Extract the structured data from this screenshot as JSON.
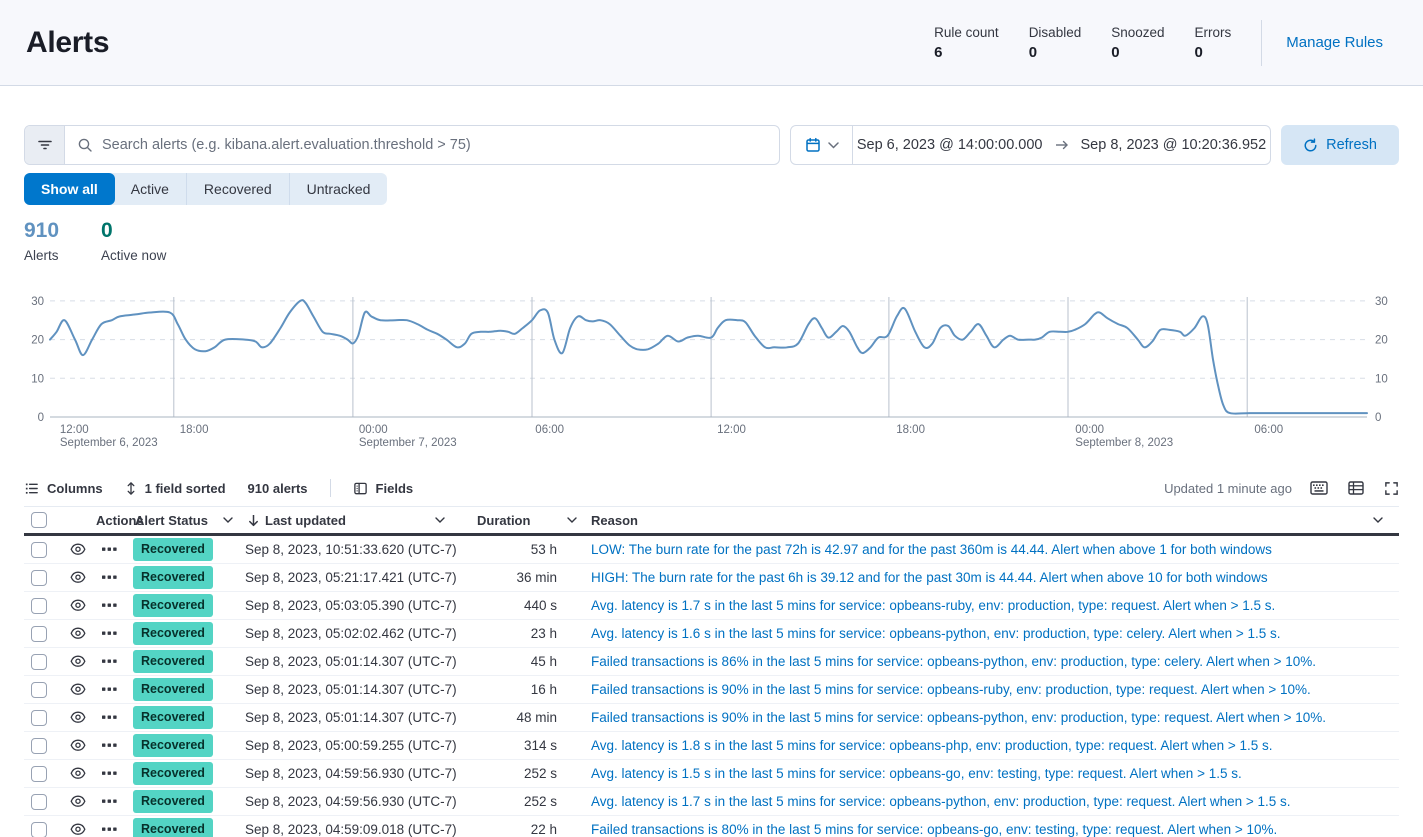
{
  "header": {
    "title": "Alerts",
    "stats": [
      {
        "label": "Rule count",
        "value": "6"
      },
      {
        "label": "Disabled",
        "value": "0"
      },
      {
        "label": "Snoozed",
        "value": "0"
      },
      {
        "label": "Errors",
        "value": "0"
      }
    ],
    "manage_rules_label": "Manage Rules"
  },
  "search": {
    "placeholder": "Search alerts (e.g. kibana.alert.evaluation.threshold > 75)"
  },
  "datepicker": {
    "start": "Sep 6, 2023 @ 14:00:00.000",
    "end": "Sep 8, 2023 @ 10:20:36.952",
    "refresh_label": "Refresh"
  },
  "filters": {
    "tabs": [
      {
        "label": "Show all",
        "active": true
      },
      {
        "label": "Active",
        "active": false
      },
      {
        "label": "Recovered",
        "active": false
      },
      {
        "label": "Untracked",
        "active": false
      }
    ]
  },
  "summary": {
    "alerts_count": "910",
    "alerts_label": "Alerts",
    "active_count": "0",
    "active_label": "Active now"
  },
  "chart_data": {
    "type": "line",
    "ylabel": "",
    "xlabel": "",
    "ylim": [
      0,
      31
    ],
    "y_ticks": [
      0,
      10,
      20,
      30
    ],
    "y_axis_sides": [
      "left",
      "right"
    ],
    "grid": true,
    "line_color": "#6092c0",
    "x_ticks": [
      {
        "pos": 0.006,
        "time": "12:00",
        "date": "September 6, 2023"
      },
      {
        "pos": 0.097,
        "time": "18:00",
        "date": ""
      },
      {
        "pos": 0.233,
        "time": "00:00",
        "date": "September 7, 2023"
      },
      {
        "pos": 0.367,
        "time": "06:00",
        "date": ""
      },
      {
        "pos": 0.505,
        "time": "12:00",
        "date": ""
      },
      {
        "pos": 0.641,
        "time": "18:00",
        "date": ""
      },
      {
        "pos": 0.777,
        "time": "00:00",
        "date": "September 8, 2023"
      },
      {
        "pos": 0.913,
        "time": "06:00",
        "date": ""
      }
    ],
    "vertical_gridline_pos": [
      0.094,
      0.23,
      0.366,
      0.502,
      0.637,
      0.773,
      0.909
    ],
    "points": [
      [
        0.0,
        20
      ],
      [
        0.005,
        22
      ],
      [
        0.011,
        25
      ],
      [
        0.019,
        20
      ],
      [
        0.025,
        16
      ],
      [
        0.032,
        20
      ],
      [
        0.039,
        24
      ],
      [
        0.047,
        25
      ],
      [
        0.053,
        26
      ],
      [
        0.065,
        26.5
      ],
      [
        0.076,
        27
      ],
      [
        0.091,
        27
      ],
      [
        0.097,
        24
      ],
      [
        0.103,
        20
      ],
      [
        0.11,
        17.5
      ],
      [
        0.118,
        17
      ],
      [
        0.125,
        18
      ],
      [
        0.133,
        20
      ],
      [
        0.148,
        20
      ],
      [
        0.156,
        19.5
      ],
      [
        0.161,
        18
      ],
      [
        0.167,
        19
      ],
      [
        0.175,
        23
      ],
      [
        0.182,
        27
      ],
      [
        0.19,
        30
      ],
      [
        0.194,
        29.5
      ],
      [
        0.2,
        26
      ],
      [
        0.207,
        22
      ],
      [
        0.213,
        21.5
      ],
      [
        0.22,
        21
      ],
      [
        0.226,
        20
      ],
      [
        0.23,
        19
      ],
      [
        0.234,
        21
      ],
      [
        0.239,
        27
      ],
      [
        0.244,
        26
      ],
      [
        0.251,
        25
      ],
      [
        0.262,
        25
      ],
      [
        0.271,
        25
      ],
      [
        0.279,
        24
      ],
      [
        0.287,
        22.5
      ],
      [
        0.294,
        21.5
      ],
      [
        0.301,
        20
      ],
      [
        0.309,
        18
      ],
      [
        0.315,
        19
      ],
      [
        0.32,
        21.5
      ],
      [
        0.327,
        22
      ],
      [
        0.334,
        22
      ],
      [
        0.342,
        22.3
      ],
      [
        0.348,
        22
      ],
      [
        0.353,
        21.5
      ],
      [
        0.359,
        23
      ],
      [
        0.366,
        25
      ],
      [
        0.372,
        27.5
      ],
      [
        0.378,
        27
      ],
      [
        0.383,
        20
      ],
      [
        0.389,
        16.5
      ],
      [
        0.395,
        23
      ],
      [
        0.401,
        26
      ],
      [
        0.407,
        25
      ],
      [
        0.412,
        24.7
      ],
      [
        0.418,
        25
      ],
      [
        0.425,
        24
      ],
      [
        0.433,
        21
      ],
      [
        0.44,
        18.5
      ],
      [
        0.446,
        17.5
      ],
      [
        0.454,
        17.5
      ],
      [
        0.462,
        19
      ],
      [
        0.469,
        21
      ],
      [
        0.477,
        19.5
      ],
      [
        0.484,
        20.5
      ],
      [
        0.492,
        21
      ],
      [
        0.502,
        20.5
      ],
      [
        0.507,
        23
      ],
      [
        0.513,
        25
      ],
      [
        0.522,
        25
      ],
      [
        0.528,
        24.5
      ],
      [
        0.535,
        21
      ],
      [
        0.543,
        18
      ],
      [
        0.55,
        18
      ],
      [
        0.56,
        18
      ],
      [
        0.568,
        19
      ],
      [
        0.576,
        24
      ],
      [
        0.581,
        25.5
      ],
      [
        0.586,
        23
      ],
      [
        0.591,
        20.5
      ],
      [
        0.597,
        22
      ],
      [
        0.602,
        23.5
      ],
      [
        0.607,
        22
      ],
      [
        0.613,
        18
      ],
      [
        0.617,
        16.5
      ],
      [
        0.623,
        18
      ],
      [
        0.629,
        20.5
      ],
      [
        0.636,
        21
      ],
      [
        0.643,
        26
      ],
      [
        0.649,
        28
      ],
      [
        0.657,
        22
      ],
      [
        0.664,
        18
      ],
      [
        0.67,
        19
      ],
      [
        0.676,
        23
      ],
      [
        0.682,
        23.5
      ],
      [
        0.687,
        21
      ],
      [
        0.693,
        20
      ],
      [
        0.699,
        22
      ],
      [
        0.705,
        24
      ],
      [
        0.711,
        21
      ],
      [
        0.717,
        18
      ],
      [
        0.724,
        20
      ],
      [
        0.729,
        21
      ],
      [
        0.735,
        20
      ],
      [
        0.743,
        20
      ],
      [
        0.748,
        20
      ],
      [
        0.753,
        20.5
      ],
      [
        0.759,
        22
      ],
      [
        0.767,
        22
      ],
      [
        0.773,
        22
      ],
      [
        0.778,
        22.5
      ],
      [
        0.786,
        24
      ],
      [
        0.793,
        26.5
      ],
      [
        0.797,
        27
      ],
      [
        0.803,
        25.5
      ],
      [
        0.811,
        24
      ],
      [
        0.818,
        23
      ],
      [
        0.826,
        20
      ],
      [
        0.831,
        18
      ],
      [
        0.837,
        19.5
      ],
      [
        0.843,
        22.5
      ],
      [
        0.85,
        22.5
      ],
      [
        0.858,
        22
      ],
      [
        0.862,
        21
      ],
      [
        0.869,
        23
      ],
      [
        0.875,
        26
      ],
      [
        0.879,
        24
      ],
      [
        0.883,
        15
      ],
      [
        0.887,
        8
      ],
      [
        0.891,
        3
      ],
      [
        0.896,
        1
      ],
      [
        0.911,
        1
      ],
      [
        0.934,
        1
      ],
      [
        0.964,
        1
      ],
      [
        1.0,
        1
      ]
    ]
  },
  "toolbar": {
    "columns_label": "Columns",
    "sorted_label": "1 field sorted",
    "alerts_label": "910 alerts",
    "fields_label": "Fields",
    "updated_label": "Updated 1 minute ago"
  },
  "table": {
    "headers": {
      "actions": "Actions",
      "status": "Alert Status",
      "updated": "Last updated",
      "duration": "Duration",
      "reason": "Reason"
    },
    "rows": [
      {
        "status": "Recovered",
        "updated": "Sep 8, 2023, 10:51:33.620 (UTC-7)",
        "duration": "53 h",
        "reason": "LOW: The burn rate for the past 72h is 42.97 and for the past 360m is 44.44. Alert when above 1 for both windows"
      },
      {
        "status": "Recovered",
        "updated": "Sep 8, 2023, 05:21:17.421 (UTC-7)",
        "duration": "36 min",
        "reason": "HIGH: The burn rate for the past 6h is 39.12 and for the past 30m is 44.44. Alert when above 10 for both windows"
      },
      {
        "status": "Recovered",
        "updated": "Sep 8, 2023, 05:03:05.390 (UTC-7)",
        "duration": "440 s",
        "reason": "Avg. latency is 1.7 s in the last 5 mins for service: opbeans-ruby, env: production, type: request. Alert when > 1.5 s."
      },
      {
        "status": "Recovered",
        "updated": "Sep 8, 2023, 05:02:02.462 (UTC-7)",
        "duration": "23 h",
        "reason": "Avg. latency is 1.6 s in the last 5 mins for service: opbeans-python, env: production, type: celery. Alert when > 1.5 s."
      },
      {
        "status": "Recovered",
        "updated": "Sep 8, 2023, 05:01:14.307 (UTC-7)",
        "duration": "45 h",
        "reason": "Failed transactions is 86% in the last 5 mins for service: opbeans-python, env: production, type: celery. Alert when > 10%."
      },
      {
        "status": "Recovered",
        "updated": "Sep 8, 2023, 05:01:14.307 (UTC-7)",
        "duration": "16 h",
        "reason": "Failed transactions is 90% in the last 5 mins for service: opbeans-ruby, env: production, type: request. Alert when > 10%."
      },
      {
        "status": "Recovered",
        "updated": "Sep 8, 2023, 05:01:14.307 (UTC-7)",
        "duration": "48 min",
        "reason": "Failed transactions is 90% in the last 5 mins for service: opbeans-python, env: production, type: request. Alert when > 10%."
      },
      {
        "status": "Recovered",
        "updated": "Sep 8, 2023, 05:00:59.255 (UTC-7)",
        "duration": "314 s",
        "reason": "Avg. latency is 1.8 s in the last 5 mins for service: opbeans-php, env: production, type: request. Alert when > 1.5 s."
      },
      {
        "status": "Recovered",
        "updated": "Sep 8, 2023, 04:59:56.930 (UTC-7)",
        "duration": "252 s",
        "reason": "Avg. latency is 1.5 s in the last 5 mins for service: opbeans-go, env: testing, type: request. Alert when > 1.5 s."
      },
      {
        "status": "Recovered",
        "updated": "Sep 8, 2023, 04:59:56.930 (UTC-7)",
        "duration": "252 s",
        "reason": "Avg. latency is 1.7 s in the last 5 mins for service: opbeans-python, env: production, type: request. Alert when > 1.5 s."
      },
      {
        "status": "Recovered",
        "updated": "Sep 8, 2023, 04:59:09.018 (UTC-7)",
        "duration": "22 h",
        "reason": "Failed transactions is 80% in the last 5 mins for service: opbeans-go, env: testing, type: request. Alert when > 10%."
      }
    ]
  },
  "colors": {
    "accent_blue": "#0071c2",
    "active_tab": "#0077cc",
    "alerts_count": "#6092c0",
    "active_now": "#00756b",
    "recovered_badge": "#53d4c4",
    "chart_line": "#6092c0",
    "header_band": "#f7f8fc",
    "border": "#d3dae6"
  },
  "icons": [
    "filter-icon",
    "search-icon",
    "calendar-icon",
    "chevron-down-icon",
    "arrow-right-icon",
    "refresh-icon",
    "columns-icon",
    "sort-fields-icon",
    "fields-icon",
    "keyboard-icon",
    "display-density-icon",
    "fullscreen-icon",
    "eye-icon",
    "more-actions-icon",
    "sort-down-icon",
    "checkbox"
  ]
}
